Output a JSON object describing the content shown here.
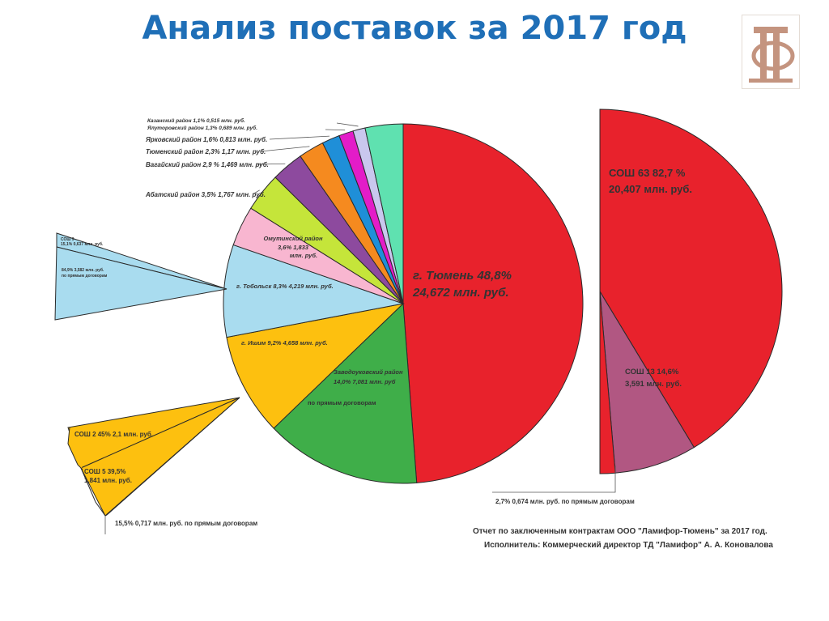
{
  "title": "Анализ поставок за 2017 год",
  "colors": {
    "title": "#1f6fb7",
    "red": "#e8222c",
    "green": "#3fae49",
    "yellow": "#fdc00f",
    "lightblue": "#a9dcef",
    "pink": "#f8b6d0",
    "lime": "#c5e53a",
    "purple": "#8d4a9e",
    "orange": "#f58a1f",
    "blue": "#1f8fd8",
    "magenta": "#e31cc8",
    "lavender": "#c9c7ee",
    "mint": "#5fe1b0",
    "mauve": "#b15782"
  },
  "chart_data": [
    {
      "type": "pie",
      "name": "main",
      "slices": [
        {
          "label": "г. Тюмень 48,8%",
          "value_label": "24,672 млн. руб.",
          "percent": 48.8,
          "color": "#e8222c"
        },
        {
          "label": "Заводоуковский район",
          "value_label": "14,0% 7,081 млн. руб",
          "extra": "по прямым договорам",
          "percent": 14.0,
          "color": "#3fae49"
        },
        {
          "label": "г. Ишим 9,2% 4,658 млн. руб.",
          "percent": 9.2,
          "color": "#fdc00f"
        },
        {
          "label": "г. Тобольск 8,3% 4,219 млн. руб.",
          "percent": 8.3,
          "color": "#a9dcef"
        },
        {
          "label": "Омутинский район",
          "value_label": "3,6% 1,833",
          "extra": "млн. руб.",
          "percent": 3.6,
          "color": "#f8b6d0"
        },
        {
          "label": "Абатский район 3,5% 1,767 млн. руб.",
          "percent": 3.5,
          "color": "#c5e53a"
        },
        {
          "label": "Вагайский район 2,9 % 1,469 млн. руб.",
          "percent": 2.9,
          "color": "#8d4a9e"
        },
        {
          "label": "Тюменский район 2,3% 1,17 млн. руб.",
          "percent": 2.3,
          "color": "#f58a1f"
        },
        {
          "label": "Ярковский район 1,6% 0,813 млн. руб.",
          "percent": 1.6,
          "color": "#1f8fd8"
        },
        {
          "label": "Ялуторовский район 1,3% 0,689 млн. руб.",
          "percent": 1.3,
          "color": "#e31cc8"
        },
        {
          "label": "Казанский район 1,1% 0,515 млн. руб.",
          "percent": 1.1,
          "color": "#c9c7ee"
        },
        {
          "label": "",
          "percent": 3.4,
          "color": "#5fe1b0"
        }
      ]
    },
    {
      "type": "pie",
      "name": "tyumen-breakdown",
      "slices": [
        {
          "label": "СОШ 63 82,7 %",
          "value_label": "20,407 млн. руб.",
          "percent": 82.7,
          "color": "#e8222c"
        },
        {
          "label": "СОШ 13 14,6%",
          "value_label": "3,591 млн. руб.",
          "percent": 14.6,
          "color": "#b15782"
        },
        {
          "label": "2,7% 0,674 млн. руб. по прямым договорам",
          "percent": 2.7,
          "color": "#e8222c"
        }
      ]
    },
    {
      "type": "pie",
      "name": "ishim-breakdown",
      "slices": [
        {
          "label": "СОШ 2 45% 2,1 млн. руб.",
          "percent": 45
        },
        {
          "label": "СОШ 5 39,5%",
          "value_label": "1,841 млн. руб.",
          "percent": 39.5
        },
        {
          "label": "15,5% 0,717 млн. руб. по прямым договорам",
          "percent": 15.5
        }
      ]
    },
    {
      "type": "pie",
      "name": "tobolsk-breakdown",
      "slices": [
        {
          "label": "СОШ 9",
          "value_label": "15,1% 0,637 млн. руб.",
          "percent": 15.1
        },
        {
          "label": "84,9% 3,582 млн. руб.",
          "extra": "по прямым договорам",
          "percent": 84.9
        }
      ]
    }
  ],
  "footer": {
    "line1": "Отчет по заключенным контрактам ООО \"Ламифор-Тюмень\" за 2017 год.",
    "line2": "Исполнитель: Коммерческий директор ТД \"Ламифор\" А. А. Коновалова"
  }
}
